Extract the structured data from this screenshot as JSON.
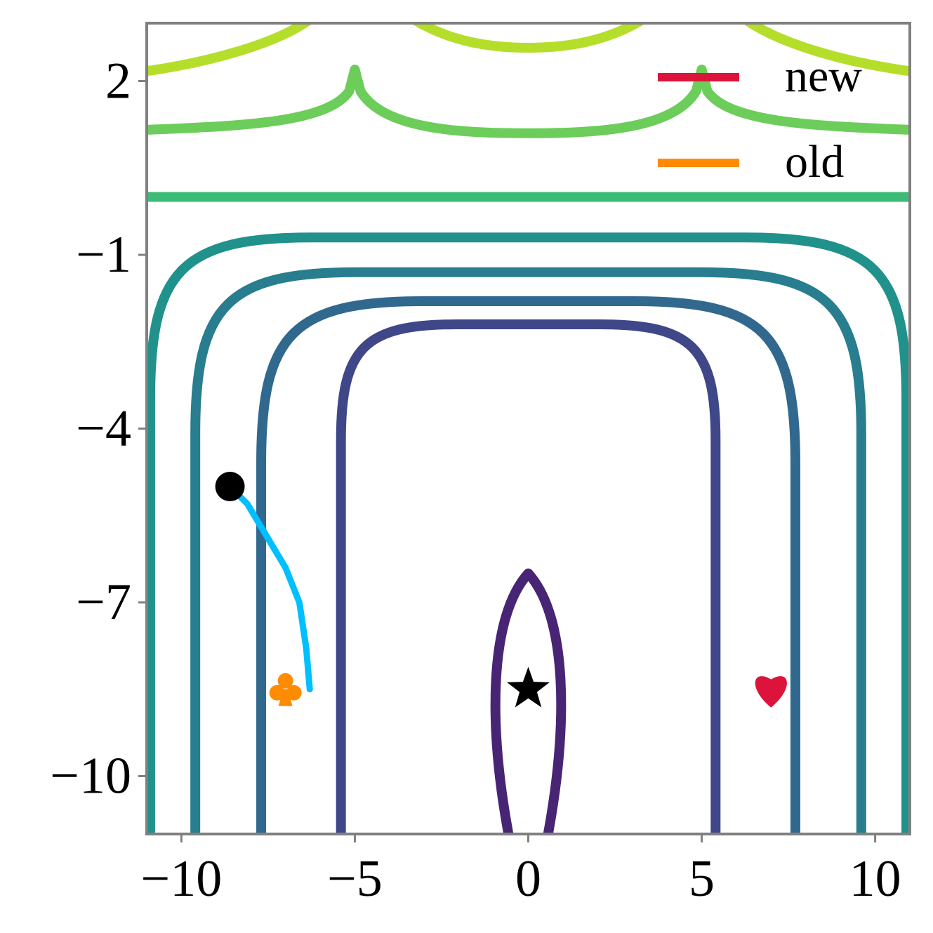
{
  "chart_data": {
    "type": "contour",
    "title": "",
    "xlabel": "",
    "ylabel": "",
    "xlim": [
      -11,
      11
    ],
    "ylim": [
      -11,
      3
    ],
    "xticks": [
      -10,
      -5,
      0,
      5,
      10
    ],
    "xtick_labels": [
      "−10",
      "−5",
      "0",
      "5",
      "10"
    ],
    "yticks": [
      2,
      -1,
      -4,
      -7,
      -10
    ],
    "ytick_labels": [
      "2",
      "−1",
      "−4",
      "−7",
      "−10"
    ],
    "grid": false,
    "legend": {
      "placement": "top-right",
      "entries": [
        {
          "label": "new",
          "color": "#dc143c"
        },
        {
          "label": "old",
          "color": "#ff8c00"
        }
      ]
    },
    "contours": [
      {
        "level": 1,
        "color": "#482475",
        "shape": "closed-ellipse",
        "x_center": 0,
        "y_top": -6.5,
        "y_bottom": -11,
        "half_width": 1.1
      },
      {
        "level": 2,
        "color": "#3f4788",
        "shape": "open-arch",
        "x_half_width": 5.4,
        "y_top": -2.2
      },
      {
        "level": 3,
        "color": "#31688e",
        "shape": "open-arch",
        "x_half_width": 7.7,
        "y_top": -1.8
      },
      {
        "level": 4,
        "color": "#287d8e",
        "shape": "open-arch",
        "x_half_width": 9.6,
        "y_top": -1.3
      },
      {
        "level": 5,
        "color": "#21918c",
        "shape": "open-arch",
        "x_half_width": 10.9,
        "y_top": -0.7
      },
      {
        "level": 6,
        "color": "#3bbb75",
        "shape": "horizontal",
        "y": 0.0
      },
      {
        "level": 7,
        "color": "#6ccd5a",
        "shape": "horizontal-with-spikes",
        "y": 1.1,
        "spikes_x": [
          -5,
          5
        ]
      },
      {
        "level": 8,
        "color": "#b5de2b",
        "shape": "top-arcs"
      }
    ],
    "trajectory": {
      "color": "#00bfff",
      "points": [
        [
          -8.6,
          -5.0
        ],
        [
          -8.1,
          -5.3
        ],
        [
          -7.6,
          -5.8
        ],
        [
          -7.0,
          -6.4
        ],
        [
          -6.6,
          -7.0
        ],
        [
          -6.4,
          -7.8
        ],
        [
          -6.3,
          -8.5
        ]
      ]
    },
    "markers": [
      {
        "name": "start",
        "symbol": "circle",
        "x": -8.6,
        "y": -5.0,
        "color": "#000000"
      },
      {
        "name": "optimum",
        "symbol": "star",
        "x": 0,
        "y": -8.5,
        "color": "#000000"
      },
      {
        "name": "old",
        "symbol": "club",
        "x": -7.0,
        "y": -8.5,
        "color": "#ff8c00"
      },
      {
        "name": "new",
        "symbol": "heart",
        "x": 7.0,
        "y": -8.5,
        "color": "#dc143c"
      }
    ]
  }
}
